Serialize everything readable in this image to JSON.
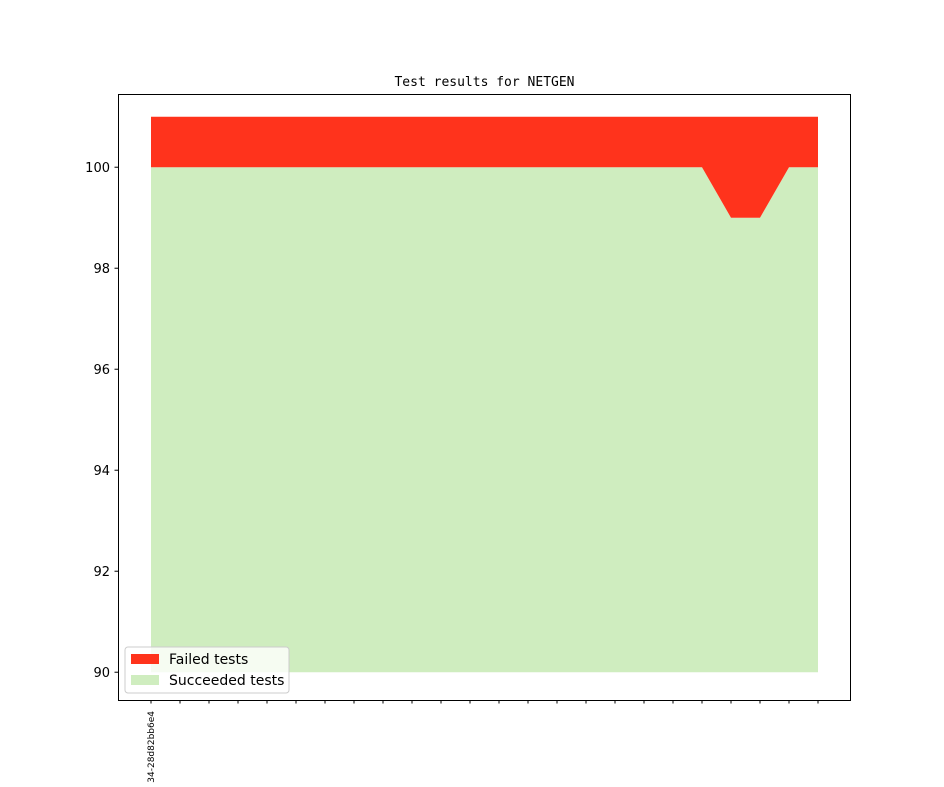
{
  "chart_data": {
    "type": "area",
    "title": "Test results for NETGEN",
    "xlabel": "",
    "ylabel": "",
    "ylim": [
      89.45,
      101.45
    ],
    "yticks": [
      90,
      92,
      94,
      96,
      98,
      100
    ],
    "x_count": 24,
    "x_tick_labels": [
      {
        "index": 0,
        "label": "34-28d82bb6e4"
      }
    ],
    "baseline": 90,
    "series": [
      {
        "name": "Succeeded tests",
        "color": "#cfedbf",
        "values": [
          100,
          100,
          100,
          100,
          100,
          100,
          100,
          100,
          100,
          100,
          100,
          100,
          100,
          100,
          100,
          100,
          100,
          100,
          100,
          100,
          99,
          99,
          100,
          100
        ]
      },
      {
        "name": "Failed tests",
        "color": "#ff331c",
        "values": [
          101,
          101,
          101,
          101,
          101,
          101,
          101,
          101,
          101,
          101,
          101,
          101,
          101,
          101,
          101,
          101,
          101,
          101,
          101,
          101,
          101,
          101,
          101,
          101
        ]
      }
    ],
    "legend": {
      "placement": "lower-left",
      "entries": [
        {
          "label": "Failed tests",
          "color": "#ff331c"
        },
        {
          "label": "Succeeded tests",
          "color": "#cfedbf"
        }
      ]
    },
    "grid": false
  }
}
